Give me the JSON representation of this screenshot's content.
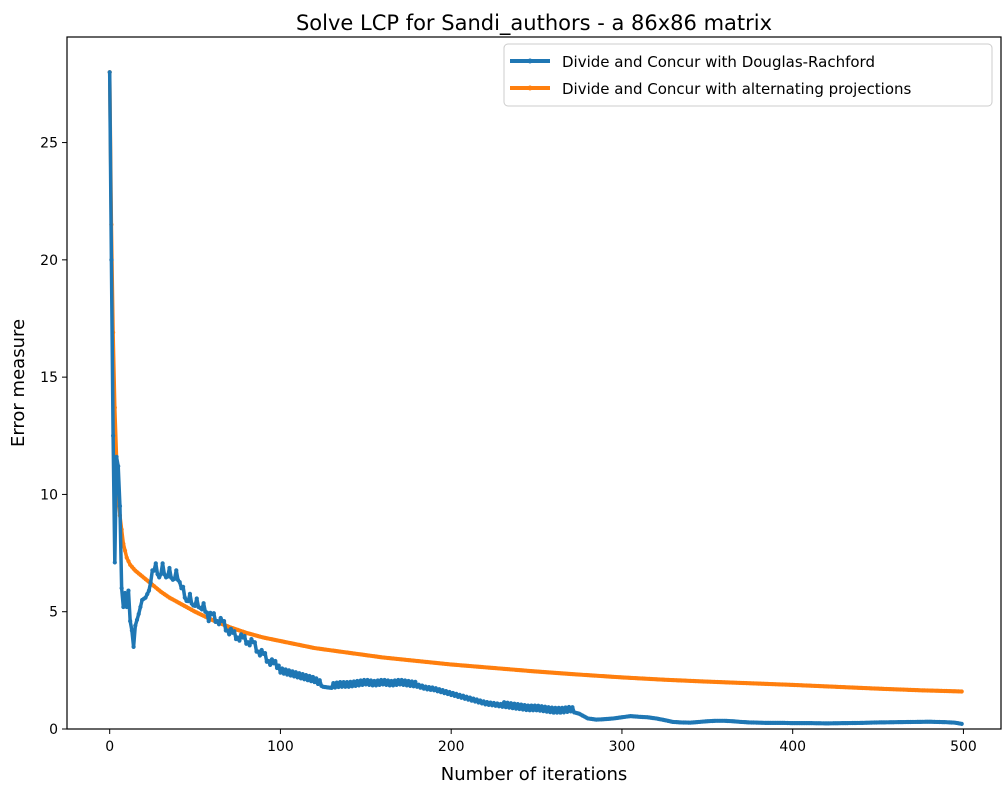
{
  "chart_data": {
    "type": "line",
    "title": "Solve LCP for Sandi_authors - a 86x86 matrix",
    "xlabel": "Number of iterations",
    "ylabel": "Error measure",
    "xlim": [
      -25,
      522
    ],
    "ylim": [
      0,
      29.5
    ],
    "xticks": [
      0,
      100,
      200,
      300,
      400,
      500
    ],
    "yticks": [
      0,
      5,
      10,
      15,
      20,
      25
    ],
    "grid": false,
    "legend_position": "top-right",
    "series": [
      {
        "name": "Divide and Concur with Douglas-Rachford",
        "color": "#1f77b4",
        "points": [
          [
            0,
            28.0
          ],
          [
            1,
            20.0
          ],
          [
            2,
            12.5
          ],
          [
            3,
            7.1
          ],
          [
            4,
            11.6
          ],
          [
            5,
            11.2
          ],
          [
            6,
            9.5
          ],
          [
            7,
            6.0
          ],
          [
            8,
            5.2
          ],
          [
            9,
            5.8
          ],
          [
            10,
            5.2
          ],
          [
            11,
            5.9
          ],
          [
            12,
            4.6
          ],
          [
            13,
            4.2
          ],
          [
            14,
            3.5
          ],
          [
            15,
            4.4
          ],
          [
            17,
            4.9
          ],
          [
            19,
            5.5
          ],
          [
            21,
            5.6
          ],
          [
            23,
            5.9
          ],
          [
            25,
            6.6
          ],
          [
            27,
            6.9
          ],
          [
            29,
            6.3
          ],
          [
            31,
            6.9
          ],
          [
            33,
            6.3
          ],
          [
            35,
            6.7
          ],
          [
            37,
            6.2
          ],
          [
            39,
            6.6
          ],
          [
            41,
            6.1
          ],
          [
            43,
            5.9
          ],
          [
            45,
            5.3
          ],
          [
            47,
            5.6
          ],
          [
            49,
            5.1
          ],
          [
            51,
            5.4
          ],
          [
            53,
            5.0
          ],
          [
            55,
            5.2
          ],
          [
            58,
            4.6
          ],
          [
            60,
            4.9
          ],
          [
            63,
            4.4
          ],
          [
            66,
            4.6
          ],
          [
            69,
            4.0
          ],
          [
            72,
            4.1
          ],
          [
            75,
            3.7
          ],
          [
            78,
            3.9
          ],
          [
            81,
            3.5
          ],
          [
            84,
            3.7
          ],
          [
            87,
            3.1
          ],
          [
            90,
            3.2
          ],
          [
            93,
            2.7
          ],
          [
            96,
            2.8
          ],
          [
            100,
            2.4
          ],
          [
            105,
            2.3
          ],
          [
            110,
            2.2
          ],
          [
            115,
            2.1
          ],
          [
            120,
            2.0
          ],
          [
            125,
            1.8
          ],
          [
            130,
            1.75
          ],
          [
            135,
            1.8
          ],
          [
            140,
            1.8
          ],
          [
            145,
            1.85
          ],
          [
            150,
            1.9
          ],
          [
            155,
            1.85
          ],
          [
            160,
            1.9
          ],
          [
            165,
            1.85
          ],
          [
            170,
            1.9
          ],
          [
            175,
            1.85
          ],
          [
            180,
            1.8
          ],
          [
            185,
            1.7
          ],
          [
            190,
            1.65
          ],
          [
            195,
            1.55
          ],
          [
            200,
            1.45
          ],
          [
            205,
            1.35
          ],
          [
            210,
            1.25
          ],
          [
            215,
            1.15
          ],
          [
            220,
            1.05
          ],
          [
            225,
            1.0
          ],
          [
            230,
            0.95
          ],
          [
            235,
            0.9
          ],
          [
            240,
            0.85
          ],
          [
            245,
            0.8
          ],
          [
            250,
            0.8
          ],
          [
            255,
            0.75
          ],
          [
            260,
            0.7
          ],
          [
            265,
            0.7
          ],
          [
            270,
            0.75
          ],
          [
            275,
            0.65
          ],
          [
            280,
            0.45
          ],
          [
            285,
            0.4
          ],
          [
            290,
            0.42
          ],
          [
            295,
            0.45
          ],
          [
            300,
            0.5
          ],
          [
            305,
            0.55
          ],
          [
            310,
            0.52
          ],
          [
            315,
            0.5
          ],
          [
            320,
            0.45
          ],
          [
            325,
            0.38
          ],
          [
            330,
            0.3
          ],
          [
            335,
            0.28
          ],
          [
            340,
            0.27
          ],
          [
            345,
            0.3
          ],
          [
            350,
            0.33
          ],
          [
            355,
            0.35
          ],
          [
            360,
            0.35
          ],
          [
            365,
            0.33
          ],
          [
            370,
            0.3
          ],
          [
            375,
            0.28
          ],
          [
            380,
            0.27
          ],
          [
            385,
            0.26
          ],
          [
            390,
            0.26
          ],
          [
            395,
            0.26
          ],
          [
            400,
            0.25
          ],
          [
            410,
            0.25
          ],
          [
            420,
            0.24
          ],
          [
            430,
            0.25
          ],
          [
            440,
            0.26
          ],
          [
            450,
            0.28
          ],
          [
            460,
            0.29
          ],
          [
            470,
            0.3
          ],
          [
            480,
            0.31
          ],
          [
            490,
            0.29
          ],
          [
            495,
            0.27
          ],
          [
            499,
            0.22
          ]
        ],
        "oscillations": [
          [
            130,
            180,
            0.22,
            1.1
          ],
          [
            180,
            230,
            0.12,
            1.0
          ],
          [
            230,
            272,
            0.2,
            1.3
          ],
          [
            24,
            58,
            0.18,
            1.2
          ],
          [
            58,
            125,
            0.2,
            1.5
          ]
        ]
      },
      {
        "name": "Divide and Concur with alternating projections",
        "color": "#ff7f0e",
        "points": [
          [
            0,
            28.0
          ],
          [
            1,
            21.5
          ],
          [
            2,
            16.9
          ],
          [
            3,
            13.7
          ],
          [
            4,
            11.6
          ],
          [
            5,
            10.0
          ],
          [
            6,
            9.1
          ],
          [
            7,
            8.5
          ],
          [
            8,
            7.9
          ],
          [
            10,
            7.3
          ],
          [
            12,
            7.0
          ],
          [
            15,
            6.75
          ],
          [
            20,
            6.45
          ],
          [
            25,
            6.15
          ],
          [
            30,
            5.85
          ],
          [
            35,
            5.6
          ],
          [
            40,
            5.4
          ],
          [
            45,
            5.2
          ],
          [
            50,
            5.0
          ],
          [
            60,
            4.65
          ],
          [
            70,
            4.35
          ],
          [
            80,
            4.1
          ],
          [
            90,
            3.9
          ],
          [
            100,
            3.75
          ],
          [
            120,
            3.45
          ],
          [
            140,
            3.25
          ],
          [
            160,
            3.05
          ],
          [
            180,
            2.9
          ],
          [
            200,
            2.75
          ],
          [
            225,
            2.6
          ],
          [
            250,
            2.45
          ],
          [
            275,
            2.32
          ],
          [
            300,
            2.2
          ],
          [
            325,
            2.1
          ],
          [
            350,
            2.02
          ],
          [
            375,
            1.95
          ],
          [
            400,
            1.88
          ],
          [
            425,
            1.8
          ],
          [
            450,
            1.72
          ],
          [
            475,
            1.65
          ],
          [
            499,
            1.6
          ]
        ]
      }
    ]
  }
}
